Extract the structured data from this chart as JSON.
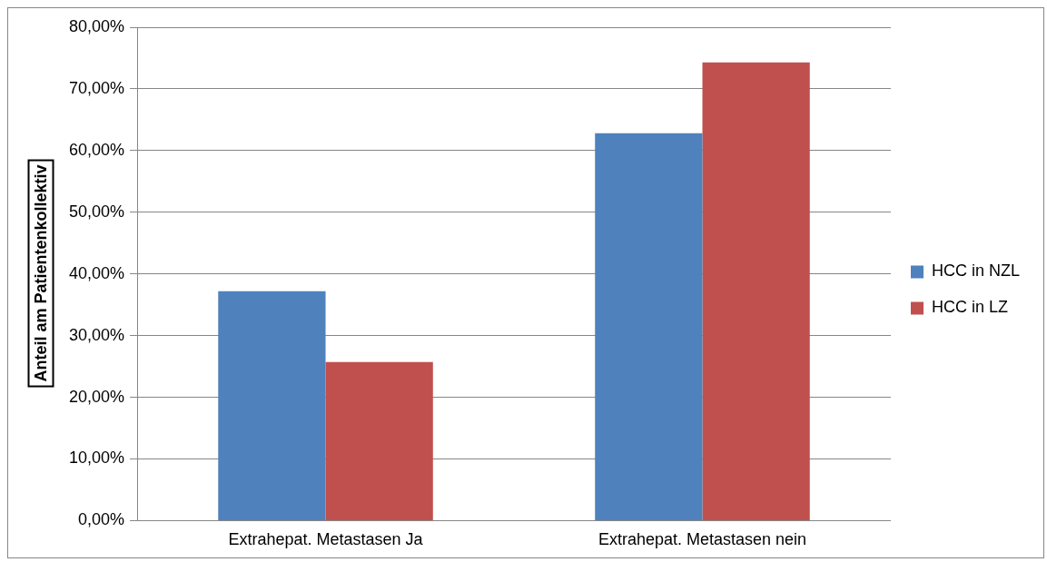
{
  "chart_data": {
    "type": "bar",
    "ylabel": "Anteil am Patientenkollektiv",
    "categories": [
      "Extrahepat. Metastasen Ja",
      "Extrahepat. Metastasen nein"
    ],
    "series": [
      {
        "name": "HCC in NZL",
        "color": "#4f81bd",
        "values": [
          37.2,
          62.8
        ]
      },
      {
        "name": "HCC in LZ",
        "color": "#c0504d",
        "values": [
          25.7,
          74.3
        ]
      }
    ],
    "ylim": [
      0,
      80
    ],
    "yticks": [
      {
        "value": 0,
        "label": "0,00%"
      },
      {
        "value": 10,
        "label": "10,00%"
      },
      {
        "value": 20,
        "label": "20,00%"
      },
      {
        "value": 30,
        "label": "30,00%"
      },
      {
        "value": 40,
        "label": "40,00%"
      },
      {
        "value": 50,
        "label": "50,00%"
      },
      {
        "value": 60,
        "label": "60,00%"
      },
      {
        "value": 70,
        "label": "70,00%"
      },
      {
        "value": 80,
        "label": "80,00%"
      }
    ],
    "grid": "y",
    "legend": "right"
  }
}
